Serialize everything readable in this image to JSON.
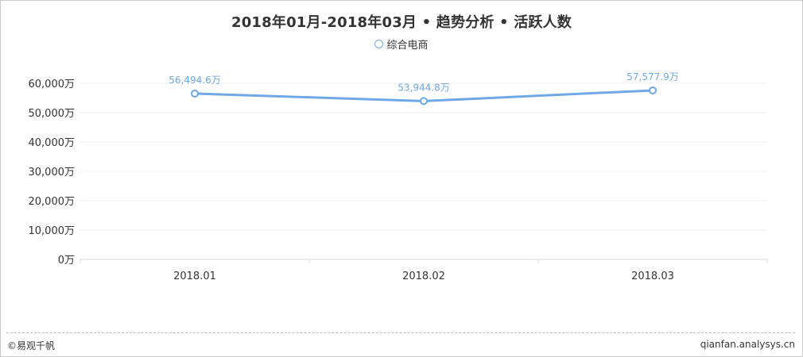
{
  "footer": {
    "copyright": "©易观千帆",
    "site": "qianfan.analysys.cn"
  },
  "colors": {
    "series": "#6fa8e6",
    "label": "#6fa8e6",
    "grid": "#f0f0f0",
    "axis": "#d9d9d9",
    "text": "#333333"
  },
  "chart_data": {
    "type": "line",
    "title": "2018年01月-2018年03月 • 趋势分析 • 活跃人数",
    "categories": [
      "2018.01",
      "2018.02",
      "2018.03"
    ],
    "series": [
      {
        "name": "综合电商",
        "values": [
          56494.6,
          53944.8,
          57577.9
        ],
        "data_labels": [
          "56,494.6万",
          "53,944.8万",
          "57,577.9万"
        ]
      }
    ],
    "yticks": [
      0,
      10000,
      20000,
      30000,
      40000,
      50000,
      60000
    ],
    "ytick_labels": [
      "0万",
      "10,000万",
      "20,000万",
      "30,000万",
      "40,000万",
      "50,000万",
      "60,000万"
    ],
    "ylim": [
      0,
      60000
    ],
    "grid": true,
    "legend": "top-center"
  }
}
